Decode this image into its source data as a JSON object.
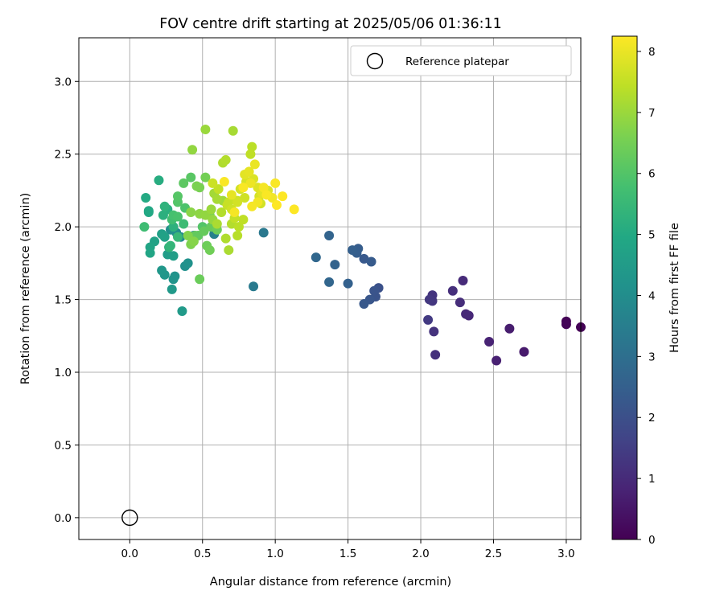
{
  "chart_data": {
    "type": "scatter",
    "title": "FOV centre drift starting at 2025/05/06 01:36:11",
    "xlabel": "Angular distance from reference (arcmin)",
    "ylabel": "Rotation from reference (arcmin)",
    "xlim": [
      -0.35,
      3.1
    ],
    "ylim": [
      -0.15,
      3.3
    ],
    "xticks": [
      0.0,
      0.5,
      1.0,
      1.5,
      2.0,
      2.5,
      3.0
    ],
    "xtick_labels": [
      "0.0",
      "0.5",
      "1.0",
      "1.5",
      "2.0",
      "2.5",
      "3.0"
    ],
    "yticks": [
      0.0,
      0.5,
      1.0,
      1.5,
      2.0,
      2.5,
      3.0
    ],
    "ytick_labels": [
      "0.0",
      "0.5",
      "1.0",
      "1.5",
      "2.0",
      "2.5",
      "3.0"
    ],
    "grid": true,
    "legend": {
      "placement": "top-right",
      "entries": [
        "Reference platepar"
      ]
    },
    "reference_point": {
      "x": 0.0,
      "y": 0.0,
      "label": "Reference platepar",
      "marker": "open-circle"
    },
    "colorbar": {
      "label": "Hours from first FF file",
      "min": 0,
      "max": 8.25,
      "ticks": [
        0,
        1,
        2,
        3,
        4,
        5,
        6,
        7,
        8
      ],
      "tick_labels": [
        "0",
        "1",
        "2",
        "3",
        "4",
        "5",
        "6",
        "7",
        "8"
      ],
      "colormap": "viridis"
    },
    "series": [
      {
        "points": [
          [
            3.0,
            1.35,
            0.05
          ],
          [
            3.0,
            1.33,
            0.1
          ],
          [
            3.1,
            1.31,
            0.05
          ],
          [
            2.71,
            1.14,
            0.6
          ],
          [
            2.61,
            1.3,
            0.65
          ],
          [
            2.52,
            1.08,
            0.75
          ],
          [
            2.47,
            1.21,
            0.8
          ],
          [
            2.33,
            1.39,
            0.9
          ],
          [
            2.31,
            1.4,
            0.95
          ],
          [
            2.29,
            1.63,
            1.0
          ],
          [
            2.27,
            1.48,
            1.05
          ],
          [
            2.22,
            1.56,
            1.1
          ],
          [
            2.1,
            1.12,
            1.15
          ],
          [
            2.09,
            1.28,
            1.2
          ],
          [
            2.08,
            1.53,
            1.25
          ],
          [
            2.08,
            1.49,
            1.3
          ],
          [
            2.06,
            1.5,
            1.35
          ],
          [
            2.05,
            1.36,
            1.4
          ],
          [
            1.71,
            1.58,
            2.05
          ],
          [
            1.69,
            1.52,
            2.1
          ],
          [
            1.68,
            1.56,
            2.15
          ],
          [
            1.65,
            1.5,
            2.2
          ],
          [
            1.61,
            1.47,
            2.25
          ],
          [
            1.61,
            1.78,
            2.3
          ],
          [
            1.66,
            1.76,
            2.35
          ],
          [
            1.57,
            1.85,
            2.4
          ],
          [
            1.56,
            1.82,
            2.45
          ],
          [
            1.53,
            1.84,
            2.5
          ],
          [
            1.5,
            1.61,
            2.55
          ],
          [
            1.41,
            1.74,
            2.6
          ],
          [
            1.37,
            1.94,
            2.65
          ],
          [
            1.37,
            1.62,
            2.7
          ],
          [
            1.28,
            1.79,
            2.75
          ],
          [
            0.92,
            1.96,
            3.3
          ],
          [
            0.85,
            1.59,
            3.35
          ],
          [
            0.58,
            1.95,
            3.6
          ],
          [
            0.56,
            2.0,
            3.7
          ],
          [
            0.44,
            1.94,
            3.8
          ],
          [
            0.35,
            1.93,
            3.9
          ],
          [
            0.32,
            1.96,
            4.0
          ],
          [
            0.28,
            1.98,
            4.05
          ],
          [
            0.38,
            1.73,
            4.1
          ],
          [
            0.4,
            1.75,
            4.15
          ],
          [
            0.31,
            1.66,
            4.2
          ],
          [
            0.3,
            1.64,
            4.25
          ],
          [
            0.24,
            1.67,
            4.3
          ],
          [
            0.22,
            1.7,
            4.35
          ],
          [
            0.29,
            1.57,
            4.4
          ],
          [
            0.36,
            1.42,
            4.45
          ],
          [
            0.27,
            1.86,
            4.5
          ],
          [
            0.26,
            1.81,
            4.55
          ],
          [
            0.3,
            1.8,
            4.6
          ],
          [
            0.22,
            1.95,
            4.65
          ],
          [
            0.24,
            1.93,
            4.7
          ],
          [
            0.17,
            1.9,
            4.75
          ],
          [
            0.14,
            1.86,
            4.8
          ],
          [
            0.14,
            1.82,
            4.85
          ],
          [
            0.13,
            2.11,
            4.9
          ],
          [
            0.13,
            2.1,
            4.95
          ],
          [
            0.11,
            2.2,
            5.0
          ],
          [
            0.2,
            2.32,
            5.1
          ],
          [
            0.26,
            2.12,
            5.15
          ],
          [
            0.23,
            2.08,
            5.2
          ],
          [
            0.3,
            2.0,
            5.25
          ],
          [
            0.24,
            2.14,
            5.3
          ],
          [
            0.27,
            1.86,
            5.35
          ],
          [
            0.28,
            1.87,
            5.4
          ],
          [
            0.33,
            1.93,
            5.5
          ],
          [
            0.37,
            2.02,
            5.6
          ],
          [
            0.1,
            2.0,
            5.65
          ],
          [
            0.29,
            2.05,
            5.7
          ],
          [
            0.3,
            2.08,
            5.8
          ],
          [
            0.33,
            2.07,
            5.85
          ],
          [
            0.38,
            2.13,
            5.9
          ],
          [
            0.33,
            2.17,
            6.0
          ],
          [
            0.33,
            2.21,
            6.05
          ],
          [
            0.42,
            2.34,
            6.1
          ],
          [
            0.37,
            2.3,
            6.15
          ],
          [
            0.47,
            1.94,
            6.2
          ],
          [
            0.45,
            1.94,
            6.25
          ],
          [
            0.51,
            1.97,
            6.3
          ],
          [
            0.48,
            1.64,
            6.35
          ],
          [
            0.53,
            1.87,
            6.4
          ],
          [
            0.55,
            1.84,
            6.45
          ],
          [
            0.52,
            2.34,
            6.5
          ],
          [
            0.48,
            2.27,
            6.55
          ],
          [
            0.46,
            2.28,
            6.6
          ],
          [
            0.42,
            1.88,
            6.65
          ],
          [
            0.4,
            1.94,
            6.7
          ],
          [
            0.44,
            1.9,
            6.75
          ],
          [
            0.42,
            2.1,
            6.8
          ],
          [
            0.48,
            2.09,
            6.85
          ],
          [
            0.52,
            2.08,
            6.9
          ],
          [
            0.57,
            2.05,
            6.95
          ],
          [
            0.56,
            2.12,
            7.0
          ],
          [
            0.64,
            2.18,
            7.05
          ],
          [
            0.58,
            2.23,
            7.1
          ],
          [
            0.6,
            2.19,
            7.15
          ],
          [
            0.68,
            1.84,
            7.2
          ],
          [
            0.66,
            1.92,
            7.25
          ],
          [
            0.7,
            2.02,
            7.3
          ],
          [
            0.74,
            1.94,
            7.35
          ],
          [
            0.75,
            2.0,
            7.4
          ],
          [
            0.78,
            2.05,
            7.45
          ],
          [
            0.72,
            2.06,
            7.5
          ],
          [
            0.68,
            2.17,
            7.55
          ],
          [
            0.74,
            2.18,
            7.6
          ],
          [
            0.79,
            2.2,
            7.65
          ],
          [
            0.76,
            2.26,
            7.7
          ],
          [
            0.8,
            2.31,
            7.75
          ],
          [
            0.85,
            2.33,
            7.8
          ],
          [
            0.88,
            2.27,
            7.85
          ],
          [
            0.91,
            2.23,
            7.9
          ],
          [
            0.82,
            2.38,
            7.95
          ],
          [
            0.86,
            2.43,
            8.0
          ],
          [
            0.83,
            2.3,
            8.05
          ],
          [
            0.88,
            2.17,
            8.1
          ],
          [
            0.84,
            2.14,
            8.15
          ],
          [
            0.78,
            2.27,
            8.2
          ],
          [
            0.84,
            2.55,
            7.4
          ],
          [
            0.83,
            2.5,
            7.45
          ],
          [
            0.71,
            2.66,
            7.15
          ],
          [
            0.52,
            2.67,
            7.0
          ],
          [
            0.66,
            2.46,
            7.3
          ],
          [
            0.64,
            2.44,
            7.25
          ],
          [
            0.43,
            2.53,
            6.9
          ],
          [
            0.92,
            2.27,
            8.15
          ],
          [
            0.94,
            2.22,
            8.2
          ],
          [
            0.98,
            2.2,
            8.1
          ],
          [
            1.0,
            2.3,
            8.2
          ],
          [
            1.05,
            2.21,
            8.25
          ],
          [
            1.13,
            2.12,
            8.25
          ],
          [
            0.89,
            2.21,
            7.75
          ],
          [
            0.9,
            2.16,
            7.7
          ],
          [
            0.95,
            2.25,
            7.8
          ],
          [
            0.6,
            2.02,
            7.2
          ],
          [
            0.63,
            2.1,
            7.3
          ],
          [
            0.57,
            2.3,
            7.6
          ],
          [
            0.61,
            2.26,
            7.5
          ],
          [
            0.7,
            2.12,
            7.65
          ],
          [
            0.67,
            2.15,
            7.55
          ],
          [
            0.72,
            2.1,
            8.15
          ],
          [
            0.74,
            2.17,
            7.7
          ],
          [
            0.56,
            2.0,
            6.3
          ],
          [
            0.6,
            1.98,
            6.4
          ],
          [
            0.5,
            2.0,
            6.0
          ],
          [
            0.55,
            2.08,
            6.6
          ],
          [
            0.65,
            2.31,
            8.2
          ],
          [
            1.01,
            2.15,
            8.25
          ],
          [
            0.79,
            2.36,
            7.9
          ],
          [
            0.7,
            2.22,
            7.95
          ]
        ]
      }
    ]
  }
}
